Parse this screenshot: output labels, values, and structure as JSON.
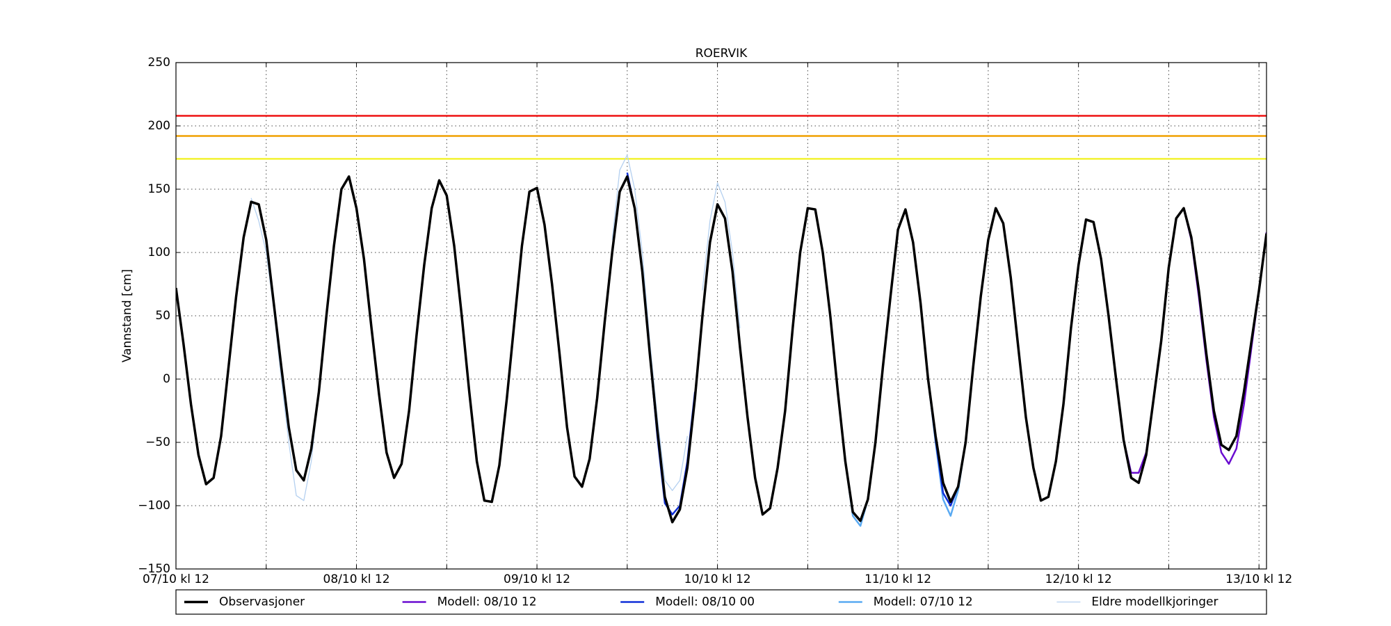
{
  "chart_data": {
    "type": "line",
    "title": "ROERVIK",
    "y_label": "Vannstand [cm]",
    "xlim": [
      0,
      145
    ],
    "xticks": [
      {
        "value": 0,
        "label": "07/10 kl 12"
      },
      {
        "value": 12,
        "label": null
      },
      {
        "value": 24,
        "label": "08/10 kl 12"
      },
      {
        "value": 36,
        "label": null
      },
      {
        "value": 48,
        "label": "09/10 kl 12"
      },
      {
        "value": 60,
        "label": null
      },
      {
        "value": 72,
        "label": "10/10 kl 12"
      },
      {
        "value": 84,
        "label": null
      },
      {
        "value": 96,
        "label": "11/10 kl 12"
      },
      {
        "value": 108,
        "label": null
      },
      {
        "value": 120,
        "label": "12/10 kl 12"
      },
      {
        "value": 132,
        "label": null
      },
      {
        "value": 144,
        "label": "13/10 kl 12"
      }
    ],
    "ylim": [
      -150,
      250
    ],
    "yticks": [
      {
        "value": -150,
        "label": "−150"
      },
      {
        "value": -100,
        "label": "−100"
      },
      {
        "value": -50,
        "label": "−50"
      },
      0,
      50,
      100,
      150,
      200,
      250
    ],
    "grid": true,
    "legend": "bottom",
    "thresholds": [
      {
        "value": 208,
        "color": "#ee1111"
      },
      {
        "value": 192,
        "color": "#f0a000"
      },
      {
        "value": 174,
        "color": "#f2f230"
      }
    ],
    "x": [
      0,
      1,
      2,
      3,
      4,
      5,
      6,
      7,
      8,
      9,
      10,
      11,
      12,
      13,
      14,
      15,
      16,
      17,
      18,
      19,
      20,
      21,
      22,
      23,
      24,
      25,
      26,
      27,
      28,
      29,
      30,
      31,
      32,
      33,
      34,
      35,
      36,
      37,
      38,
      39,
      40,
      41,
      42,
      43,
      44,
      45,
      46,
      47,
      48,
      49,
      50,
      51,
      52,
      53,
      54,
      55,
      56,
      57,
      58,
      59,
      60,
      61,
      62,
      63,
      64,
      65,
      66,
      67,
      68,
      69,
      70,
      71,
      72,
      73,
      74,
      75,
      76,
      77,
      78,
      79,
      80,
      81,
      82,
      83,
      84,
      85,
      86,
      87,
      88,
      89,
      90,
      91,
      92,
      93,
      94,
      95,
      96,
      97,
      98,
      99,
      100,
      101,
      102,
      103,
      104,
      105,
      106,
      107,
      108,
      109,
      110,
      111,
      112,
      113,
      114,
      115,
      116,
      117,
      118,
      119,
      120,
      121,
      122,
      123,
      124,
      125,
      126,
      127,
      128,
      129,
      130,
      131,
      132,
      133,
      134,
      135,
      136,
      137,
      138,
      139,
      140,
      141,
      142,
      143,
      144,
      145
    ],
    "series": [
      {
        "name": "Observasjoner",
        "color": "#000000",
        "width": 3.5,
        "values": [
          72,
          28,
          -20,
          -60,
          -83,
          -78,
          -45,
          10,
          65,
          112,
          140,
          138,
          110,
          60,
          10,
          -38,
          -72,
          -80,
          -55,
          -10,
          50,
          105,
          150,
          160,
          135,
          95,
          40,
          -12,
          -58,
          -78,
          -67,
          -25,
          35,
          90,
          135,
          157,
          145,
          105,
          50,
          -10,
          -65,
          -96,
          -97,
          -68,
          -15,
          45,
          105,
          148,
          151,
          122,
          75,
          20,
          -38,
          -77,
          -85,
          -63,
          -15,
          45,
          100,
          148,
          160,
          135,
          85,
          20,
          -40,
          -93,
          -113,
          -103,
          -70,
          -15,
          50,
          108,
          138,
          127,
          85,
          25,
          -30,
          -78,
          -107,
          -102,
          -70,
          -25,
          40,
          100,
          135,
          134,
          100,
          50,
          -10,
          -65,
          -105,
          -112,
          -95,
          -50,
          10,
          65,
          118,
          134,
          108,
          60,
          0,
          -45,
          -82,
          -97,
          -85,
          -50,
          10,
          65,
          110,
          135,
          123,
          80,
          25,
          -30,
          -70,
          -96,
          -93,
          -65,
          -20,
          40,
          90,
          126,
          124,
          95,
          50,
          0,
          -48,
          -78,
          -82,
          -60,
          -15,
          30,
          88,
          127,
          135,
          112,
          70,
          20,
          -25,
          -52,
          -56,
          -45,
          -10,
          30,
          70,
          115
        ]
      },
      {
        "name": "Modell: 08/10 12",
        "color": "#6a0cd0",
        "width": 2.5,
        "x": [
          124,
          125,
          126,
          127,
          128,
          129,
          130,
          131,
          132,
          133,
          134,
          135,
          136,
          137,
          138,
          139,
          140,
          141,
          142,
          143,
          144,
          145
        ],
        "values": [
          50,
          0,
          -48,
          -74,
          -74,
          -58,
          -15,
          30,
          88,
          127,
          135,
          110,
          65,
          15,
          -30,
          -58,
          -67,
          -55,
          -20,
          25,
          70,
          116
        ]
      },
      {
        "name": "Modell: 08/10 00",
        "color": "#1030d8",
        "width": 2.5,
        "x": [
          60,
          61,
          62,
          63,
          64,
          65,
          66,
          67,
          68,
          69,
          70,
          100,
          101,
          102,
          103,
          104,
          105
        ],
        "values": [
          163,
          135,
          85,
          20,
          -45,
          -98,
          -107,
          -100,
          -65,
          -10,
          null,
          0,
          -48,
          -90,
          -100,
          -85,
          -50
        ]
      },
      {
        "name": "Modell: 07/10 12",
        "color": "#5aaaf2",
        "width": 2.5,
        "x": [
          88,
          89,
          90,
          91,
          92,
          93,
          100,
          101,
          102,
          103,
          104,
          105
        ],
        "values": [
          -10,
          -65,
          -108,
          -116,
          -95,
          null,
          0,
          -50,
          -95,
          -108,
          -88,
          -50
        ]
      },
      {
        "name": "Eldre modellkjoringer",
        "color": "#b4d0f0",
        "width": 1.3,
        "x": [
          10,
          11,
          12,
          13,
          14,
          15,
          16,
          17,
          18,
          19,
          20,
          58,
          59,
          60,
          61,
          62,
          63,
          64,
          65,
          66,
          67,
          68,
          69,
          70,
          71,
          72,
          73,
          74,
          75
        ],
        "values": [
          143,
          125,
          100,
          55,
          0,
          -50,
          -92,
          -96,
          -65,
          -10,
          null,
          110,
          165,
          177,
          150,
          100,
          30,
          -30,
          -80,
          -88,
          -80,
          -45,
          null,
          70,
          125,
          155,
          140,
          100,
          40
        ]
      }
    ]
  }
}
